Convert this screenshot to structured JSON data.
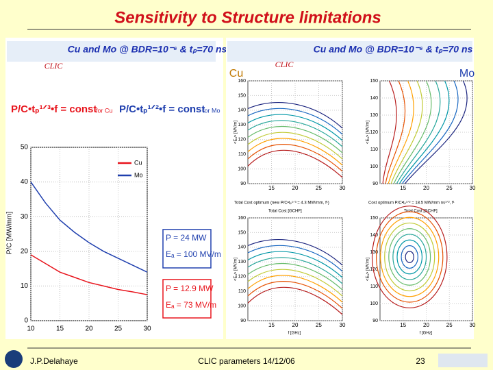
{
  "title": "Sensitivity to Structure limitations",
  "left_panel": {
    "header": "Cu and Mo @ BDR=10⁻⁶ & tₚ=70 ns",
    "logo": "CLIC",
    "formula_cu": "P/C•tₚ¹ᐟ³•f = const",
    "formula_cu_note": "for Cu",
    "formula_mo": "P/C•tₚ¹ᐟ²•f = const",
    "formula_mo_note": "for Mo",
    "chart": {
      "type": "line",
      "ylabel": "P/C [MW/mm]",
      "x": [
        10,
        12.5,
        15,
        17.5,
        20,
        22.5,
        25,
        27.5,
        30
      ],
      "series": [
        {
          "name": "Cu",
          "color": "#e8141c",
          "values": [
            19,
            16.5,
            14,
            12.5,
            11,
            10,
            9,
            8.3,
            7.5
          ]
        },
        {
          "name": "Mo",
          "color": "#1f3fae",
          "values": [
            40,
            34,
            29,
            25.5,
            22.5,
            20,
            18,
            16,
            14
          ]
        }
      ],
      "xlim": [
        10,
        30
      ],
      "xticks": [
        10,
        15,
        20,
        25,
        30
      ],
      "ylim": [
        0,
        50
      ],
      "yticks": [
        0,
        10,
        20,
        30,
        40,
        50
      ],
      "grid": true
    },
    "annotation_mo": [
      "P = 24 MW",
      "Eₐ = 100 MV/m"
    ],
    "annotation_cu": [
      "P = 12.9 MW",
      "Eₐ = 73 MV/m"
    ]
  },
  "right_panel": {
    "header": "Cu and Mo @ BDR=10⁻⁶ & tₚ=70 ns",
    "logo": "CLIC",
    "label_cu": "Cu",
    "label_mo": "Mo",
    "caption_cu": "Total Cost optimum (new P/C•tₚ¹ᐟ³ = 4.3 MW/mm, f¹)",
    "caption_mo": "Cost optimum P/C•tₚ¹ᐟ² = 18.5 MW/mm ns¹ᐟ², f¹",
    "cost_label": "Total Cost [GCHF]",
    "xlabel": "f [GHz]",
    "ylabel": "<Eₐ> [MV/m]",
    "panels": [
      {
        "xlim": [
          10,
          30
        ],
        "xticks": [
          15,
          20,
          25,
          30
        ],
        "ylim": [
          90,
          160
        ],
        "yticks": [
          90,
          100,
          110,
          120,
          130,
          140,
          150,
          160
        ]
      },
      {
        "xlim": [
          10,
          30
        ],
        "xticks": [
          15,
          20,
          25,
          30
        ],
        "ylim": [
          90,
          150
        ],
        "yticks": [
          90,
          100,
          110,
          120,
          130,
          140,
          150
        ]
      },
      {
        "xlim": [
          10,
          30
        ],
        "xticks": [
          15,
          20,
          25,
          30
        ],
        "ylim": [
          90,
          160
        ],
        "yticks": [
          90,
          100,
          110,
          120,
          130,
          140,
          150,
          160
        ]
      },
      {
        "xlim": [
          10,
          30
        ],
        "xticks": [
          15,
          20,
          25,
          30
        ],
        "ylim": [
          90,
          150
        ],
        "yticks": [
          90,
          100,
          110,
          120,
          130,
          140,
          150
        ]
      }
    ]
  },
  "footer": {
    "author": "J.P.Delahaye",
    "event": "CLIC parameters 14/12/06",
    "page": "23"
  }
}
